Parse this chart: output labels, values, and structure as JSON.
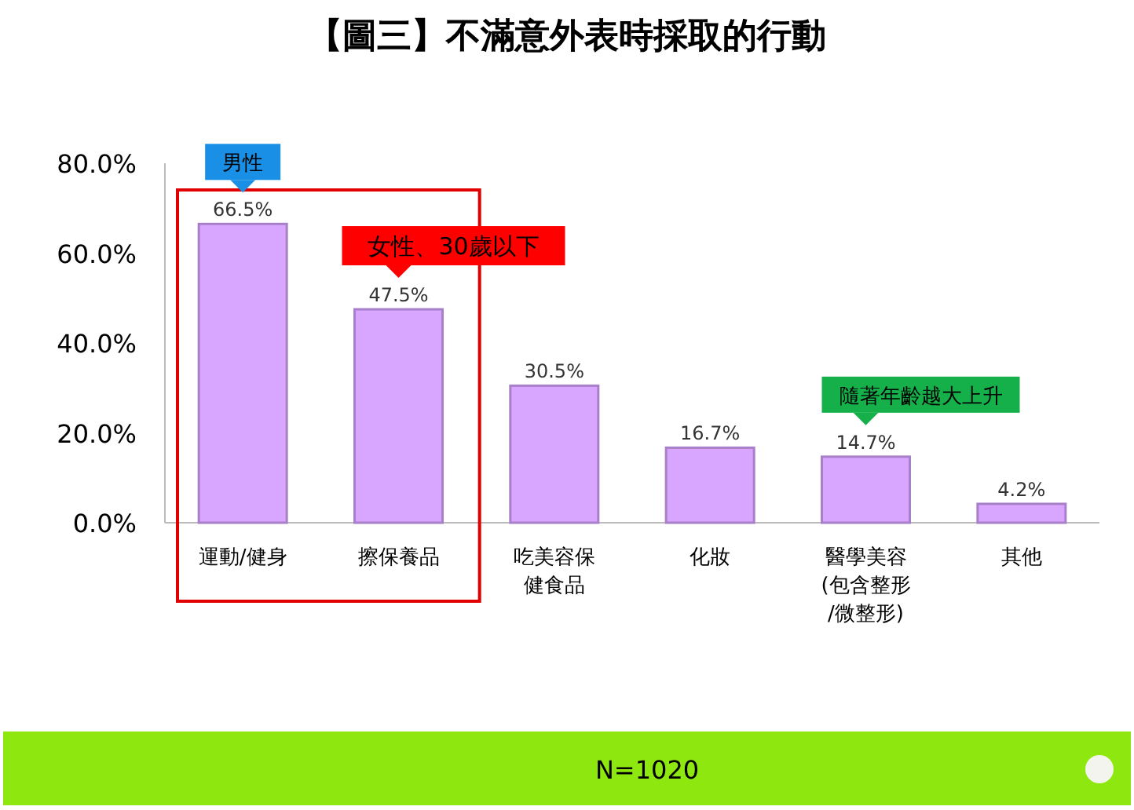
{
  "chart_data": {
    "type": "bar",
    "title": "【圖三】不滿意外表時採取的行動",
    "categories": [
      "運動/健身",
      "擦保養品",
      "吃美容保健食品",
      "化妝",
      "醫學美容(包含整形/微整形)",
      "其他"
    ],
    "values": [
      66.5,
      47.5,
      30.5,
      16.7,
      14.7,
      4.2
    ],
    "value_labels": [
      "66.5%",
      "47.5%",
      "30.5%",
      "16.7%",
      "14.7%",
      "4.2%"
    ],
    "color": "#d9a6ff",
    "ylim": [
      0,
      80
    ],
    "yticks": [
      {
        "value": 0,
        "label": "0.0%"
      },
      {
        "value": 20,
        "label": "20.0%"
      },
      {
        "value": 40,
        "label": "40.0%"
      },
      {
        "value": 60,
        "label": "60.0%"
      },
      {
        "value": 80,
        "label": "80.0%"
      }
    ],
    "grid": false,
    "annotations": [
      {
        "text": "男性",
        "x": "運動/健身",
        "y": 66.5
      },
      {
        "text": "女性、30歲以下",
        "x": "擦保養品",
        "y": 47.5
      },
      {
        "text": "隨著年齡越大上升",
        "x": "醫學美容(包含整形/微整形)",
        "y": 14.7
      },
      "N=1020"
    ]
  }
}
